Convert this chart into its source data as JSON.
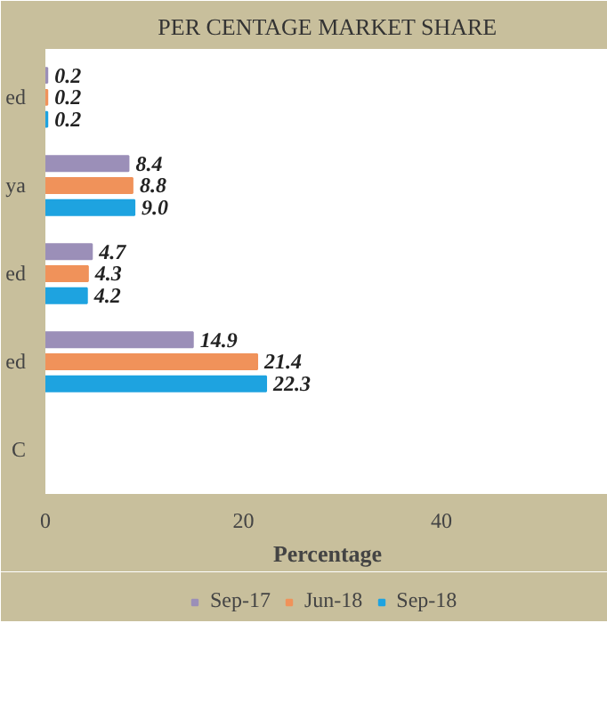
{
  "chart_data": {
    "type": "bar",
    "orientation": "horizontal",
    "title": "PER CENTAGE MARKET SHARE",
    "xlabel": "Percentage",
    "categories": [
      "ed",
      "ya",
      "ed",
      "ed",
      "C"
    ],
    "series": [
      {
        "name": "Sep-17",
        "color": "#9b8fb8",
        "values": [
          0.2,
          8.4,
          4.7,
          14.9,
          null
        ],
        "value_labels": [
          "0.2",
          "8.4",
          "4.7",
          "14.9",
          null
        ]
      },
      {
        "name": "Jun-18",
        "color": "#f0925a",
        "values": [
          0.2,
          8.8,
          4.3,
          21.4,
          null
        ],
        "value_labels": [
          "0.2",
          "8.8",
          "4.3",
          "21.4",
          null
        ]
      },
      {
        "name": "Sep-18",
        "color": "#1ea3e0",
        "values": [
          0.2,
          9.0,
          4.2,
          22.3,
          null
        ],
        "value_labels": [
          "0.2",
          "9.0",
          "4.2",
          "22.3",
          null
        ]
      }
    ],
    "xlim": [
      0,
      57
    ],
    "xticks": [
      0,
      20,
      40
    ],
    "legend": "bottom"
  }
}
